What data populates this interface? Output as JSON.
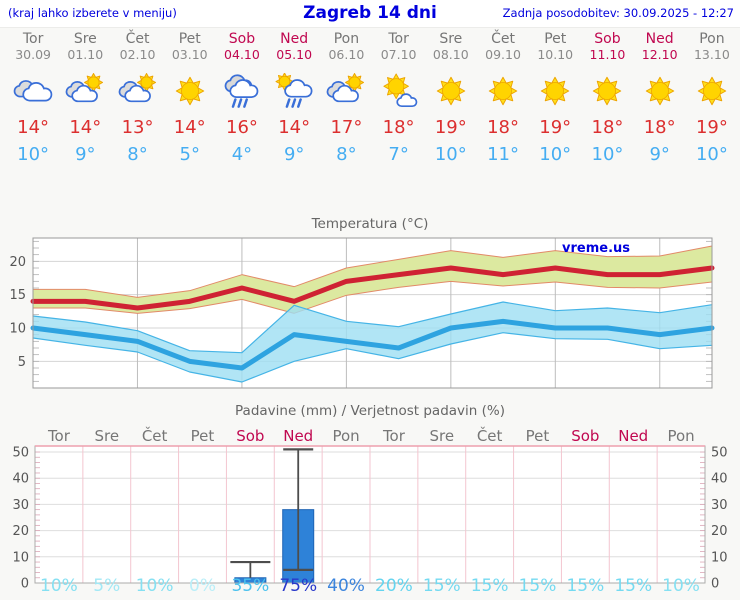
{
  "header": {
    "left": "(kraj lahko izberete v meniju)",
    "title": "Zagreb 14 dni",
    "updated": "Zadnja posodobitev: 30.09.2025 - 12:27"
  },
  "colors": {
    "accent_blue": "#0000dd",
    "tmax_red": "#dc2f2f",
    "tmin_blue": "#45adf2",
    "weekend_red": "#c00850",
    "day_gray": "#767676",
    "bar_blue": "#2e82d8",
    "max_band_green": "#dce9a0",
    "min_band_cyan": "#9edff2",
    "max_line": "#cf2233",
    "min_line": "#2ea3e0"
  },
  "forecast": {
    "days": [
      {
        "name": "Tor",
        "date": "30.09",
        "weekend": false,
        "icon": "cloudy",
        "tmax": "14°",
        "tmin": "10°"
      },
      {
        "name": "Sre",
        "date": "01.10",
        "weekend": false,
        "icon": "partly-sunny",
        "tmax": "14°",
        "tmin": "9°"
      },
      {
        "name": "Čet",
        "date": "02.10",
        "weekend": false,
        "icon": "partly-sunny",
        "tmax": "13°",
        "tmin": "8°"
      },
      {
        "name": "Pet",
        "date": "03.10",
        "weekend": false,
        "icon": "sunny",
        "tmax": "14°",
        "tmin": "5°"
      },
      {
        "name": "Sob",
        "date": "04.10",
        "weekend": true,
        "icon": "rain",
        "tmax": "16°",
        "tmin": "4°"
      },
      {
        "name": "Ned",
        "date": "05.10",
        "weekend": true,
        "icon": "sun-rain",
        "tmax": "14°",
        "tmin": "9°"
      },
      {
        "name": "Pon",
        "date": "06.10",
        "weekend": false,
        "icon": "partly-sunny",
        "tmax": "17°",
        "tmin": "8°"
      },
      {
        "name": "Tor",
        "date": "07.10",
        "weekend": false,
        "icon": "mostly-sunny",
        "tmax": "18°",
        "tmin": "7°"
      },
      {
        "name": "Sre",
        "date": "08.10",
        "weekend": false,
        "icon": "sunny",
        "tmax": "19°",
        "tmin": "10°"
      },
      {
        "name": "Čet",
        "date": "09.10",
        "weekend": false,
        "icon": "sunny",
        "tmax": "18°",
        "tmin": "11°"
      },
      {
        "name": "Pet",
        "date": "10.10",
        "weekend": false,
        "icon": "sunny",
        "tmax": "19°",
        "tmin": "10°"
      },
      {
        "name": "Sob",
        "date": "11.10",
        "weekend": true,
        "icon": "sunny",
        "tmax": "18°",
        "tmin": "10°"
      },
      {
        "name": "Ned",
        "date": "12.10",
        "weekend": true,
        "icon": "sunny",
        "tmax": "18°",
        "tmin": "9°"
      },
      {
        "name": "Pon",
        "date": "13.10",
        "weekend": false,
        "icon": "sunny",
        "tmax": "19°",
        "tmin": "10°"
      }
    ]
  },
  "chart_data": [
    {
      "type": "line",
      "title": "Temperatura (°C)",
      "watermark": "vreme.us",
      "x_days": [
        "Tor",
        "Sre",
        "Čet",
        "Pet",
        "Sob",
        "Ned",
        "Pon",
        "Tor",
        "Sre",
        "Čet",
        "Pet",
        "Sob",
        "Ned",
        "Pon"
      ],
      "ylim": [
        1,
        23.5
      ],
      "yticks": [
        5,
        10,
        15,
        20
      ],
      "grid_x_indices": [
        2,
        4,
        6,
        8,
        10,
        12
      ],
      "series": [
        {
          "name": "t_max",
          "color": "#cf2233",
          "values": [
            14,
            14,
            13,
            14,
            16,
            14,
            17,
            18,
            19,
            18,
            19,
            18,
            18,
            19
          ]
        },
        {
          "name": "t_max_upper",
          "values": [
            15.8,
            15.8,
            14.6,
            15.6,
            18.0,
            16.2,
            19.0,
            20.3,
            21.6,
            20.6,
            21.6,
            20.7,
            20.8,
            22.3
          ]
        },
        {
          "name": "t_max_lower",
          "values": [
            13.0,
            13.0,
            12.2,
            12.9,
            14.3,
            12.2,
            14.9,
            16.1,
            17.0,
            16.3,
            16.9,
            16.1,
            16.0,
            16.9
          ]
        },
        {
          "name": "t_min",
          "color": "#2ea3e0",
          "values": [
            10,
            9,
            8,
            5,
            4,
            9,
            8,
            7,
            10,
            11,
            10,
            10,
            9,
            10
          ]
        },
        {
          "name": "t_min_upper",
          "values": [
            11.8,
            10.9,
            9.6,
            6.6,
            6.3,
            13.4,
            11.0,
            10.2,
            12.1,
            13.9,
            12.6,
            13.0,
            12.3,
            13.5
          ]
        },
        {
          "name": "t_min_lower",
          "values": [
            8.5,
            7.4,
            6.4,
            3.4,
            1.9,
            5.0,
            6.9,
            5.4,
            7.6,
            9.3,
            8.4,
            8.3,
            6.9,
            7.4
          ]
        }
      ]
    },
    {
      "type": "bar",
      "title": "Padavine (mm) / Verjetnost padavin (%)",
      "categories": [
        {
          "label": "Tor",
          "weekend": false
        },
        {
          "label": "Sre",
          "weekend": false
        },
        {
          "label": "Čet",
          "weekend": false
        },
        {
          "label": "Pet",
          "weekend": false
        },
        {
          "label": "Sob",
          "weekend": true
        },
        {
          "label": "Ned",
          "weekend": true
        },
        {
          "label": "Pon",
          "weekend": false
        },
        {
          "label": "Tor",
          "weekend": false
        },
        {
          "label": "Sre",
          "weekend": false
        },
        {
          "label": "Čet",
          "weekend": false
        },
        {
          "label": "Pet",
          "weekend": false
        },
        {
          "label": "Sob",
          "weekend": true
        },
        {
          "label": "Ned",
          "weekend": true
        },
        {
          "label": "Pon",
          "weekend": false
        }
      ],
      "values": [
        0,
        0,
        0,
        0,
        2,
        28,
        0,
        0,
        0,
        0,
        0,
        0,
        0,
        0
      ],
      "whiskers": [
        {
          "index": 4,
          "low": 2,
          "high": 8,
          "low_cap": false,
          "cap_half": 20
        },
        {
          "index": 5,
          "low": 5,
          "high": 51,
          "low_cap": true,
          "cap_half": 15
        }
      ],
      "probabilities": [
        {
          "label": "10%",
          "color": "#85e0f2"
        },
        {
          "label": "5%",
          "color": "#a2e8f5"
        },
        {
          "label": "10%",
          "color": "#85e0f2"
        },
        {
          "label": "0%",
          "color": "#b9eef8"
        },
        {
          "label": "35%",
          "color": "#4cc2ee"
        },
        {
          "label": "75%",
          "color": "#2838ca"
        },
        {
          "label": "40%",
          "color": "#3c85dd"
        },
        {
          "label": "20%",
          "color": "#63d4ef"
        },
        {
          "label": "15%",
          "color": "#74daf1"
        },
        {
          "label": "15%",
          "color": "#74daf1"
        },
        {
          "label": "15%",
          "color": "#74daf1"
        },
        {
          "label": "15%",
          "color": "#74daf1"
        },
        {
          "label": "15%",
          "color": "#74daf1"
        },
        {
          "label": "10%",
          "color": "#85e0f2"
        }
      ],
      "ylim": [
        0,
        52
      ],
      "yticks": [
        0,
        10,
        20,
        30,
        40,
        50
      ]
    }
  ]
}
